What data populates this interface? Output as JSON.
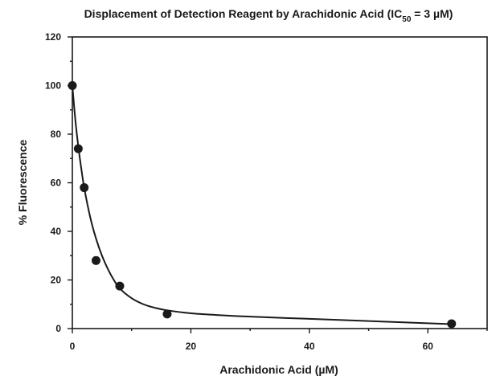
{
  "chart_data": {
    "type": "scatter",
    "title": {
      "prefix": "Displacement of Detection Reagent by Arachidonic Acid (IC",
      "subscript": "50",
      "suffix": " = 3 µM)"
    },
    "xlabel": "Arachidonic Acid (µM)",
    "ylabel": "% Fluorescence",
    "xlim": [
      0,
      70
    ],
    "ylim": [
      0,
      120
    ],
    "x_ticks": [
      0,
      20,
      40,
      60
    ],
    "x_minor_ticks": [
      10,
      30,
      50,
      70
    ],
    "y_ticks": [
      0,
      20,
      40,
      60,
      80,
      100,
      120
    ],
    "y_minor_ticks": [
      10,
      30,
      50,
      70,
      90,
      110
    ],
    "grid": false,
    "series": [
      {
        "points": [
          {
            "x": 0,
            "y": 100
          },
          {
            "x": 1,
            "y": 74
          },
          {
            "x": 2,
            "y": 58
          },
          {
            "x": 4,
            "y": 28
          },
          {
            "x": 8,
            "y": 17.5
          },
          {
            "x": 16,
            "y": 6
          },
          {
            "x": 64,
            "y": 2
          }
        ]
      }
    ],
    "fit_curve": [
      {
        "x": 0,
        "y": 100
      },
      {
        "x": 0.5,
        "y": 86
      },
      {
        "x": 1,
        "y": 75
      },
      {
        "x": 1.5,
        "y": 66
      },
      {
        "x": 2,
        "y": 58
      },
      {
        "x": 3,
        "y": 46
      },
      {
        "x": 4,
        "y": 37
      },
      {
        "x": 5,
        "y": 30
      },
      {
        "x": 6,
        "y": 24.5
      },
      {
        "x": 7,
        "y": 20
      },
      {
        "x": 8,
        "y": 16.5
      },
      {
        "x": 10,
        "y": 12.5
      },
      {
        "x": 12,
        "y": 10
      },
      {
        "x": 14,
        "y": 8.5
      },
      {
        "x": 16,
        "y": 7.5
      },
      {
        "x": 20,
        "y": 6.3
      },
      {
        "x": 25,
        "y": 5.5
      },
      {
        "x": 30,
        "y": 4.9
      },
      {
        "x": 40,
        "y": 4
      },
      {
        "x": 50,
        "y": 3.1
      },
      {
        "x": 60,
        "y": 2.2
      },
      {
        "x": 64,
        "y": 1.8
      }
    ],
    "colors": {
      "ink": "#1a1a1a",
      "background": "#ffffff"
    }
  }
}
